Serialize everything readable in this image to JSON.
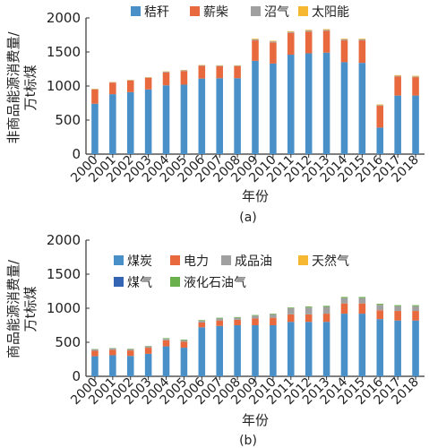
{
  "chart_data": [
    {
      "type": "bar",
      "stacked": true,
      "panel_label": "(a)",
      "xlabel": "年份",
      "ylabel": "非商品能源消费量/万t标煤",
      "ylim": [
        0,
        2000
      ],
      "yticks": [
        0,
        500,
        1000,
        1500,
        2000
      ],
      "grid": false,
      "legend_position": "top",
      "categories": [
        "2000",
        "2001",
        "2002",
        "2003",
        "2004",
        "2005",
        "2006",
        "2007",
        "2008",
        "2009",
        "2010",
        "2011",
        "2012",
        "2013",
        "2014",
        "2015",
        "2016",
        "2017",
        "2018"
      ],
      "series": [
        {
          "name": "秸秆",
          "color": "#4a90c8",
          "values": [
            740,
            880,
            910,
            950,
            1010,
            1020,
            1110,
            1115,
            1115,
            1370,
            1330,
            1460,
            1480,
            1490,
            1350,
            1340,
            390,
            860,
            860
          ]
        },
        {
          "name": "薪柴",
          "color": "#e8693e",
          "values": [
            210,
            170,
            170,
            170,
            190,
            200,
            185,
            175,
            175,
            300,
            310,
            320,
            320,
            320,
            320,
            330,
            320,
            280,
            270
          ]
        },
        {
          "name": "沼气",
          "color": "#a0a0a0",
          "values": [
            5,
            5,
            5,
            5,
            10,
            10,
            10,
            10,
            10,
            15,
            15,
            15,
            15,
            15,
            15,
            15,
            10,
            10,
            10
          ]
        },
        {
          "name": "太阳能",
          "color": "#f6b733",
          "values": [
            5,
            5,
            5,
            5,
            5,
            5,
            5,
            5,
            5,
            10,
            10,
            10,
            10,
            10,
            10,
            10,
            10,
            10,
            10
          ]
        }
      ]
    },
    {
      "type": "bar",
      "stacked": true,
      "panel_label": "(b)",
      "xlabel": "年份",
      "ylabel": "商品能源消费量/万t标煤",
      "ylim": [
        0,
        2000
      ],
      "yticks": [
        0,
        500,
        1000,
        1500,
        2000
      ],
      "grid": false,
      "legend_position": "top",
      "categories": [
        "2000",
        "2001",
        "2002",
        "2003",
        "2004",
        "2005",
        "2006",
        "2007",
        "2008",
        "2009",
        "2010",
        "2011",
        "2012",
        "2013",
        "2014",
        "2015",
        "2016",
        "2017",
        "2018"
      ],
      "series": [
        {
          "name": "煤炭",
          "color": "#4a90c8",
          "values": [
            295,
            310,
            300,
            330,
            440,
            420,
            720,
            740,
            750,
            750,
            750,
            800,
            800,
            800,
            920,
            920,
            840,
            820,
            820
          ]
        },
        {
          "name": "电力",
          "color": "#e8693e",
          "values": [
            80,
            80,
            80,
            90,
            90,
            90,
            70,
            80,
            80,
            100,
            110,
            110,
            110,
            120,
            150,
            150,
            130,
            140,
            140
          ]
        },
        {
          "name": "成品油",
          "color": "#a0a0a0",
          "values": [
            20,
            20,
            20,
            20,
            20,
            20,
            25,
            30,
            30,
            40,
            50,
            90,
            100,
            100,
            80,
            80,
            80,
            70,
            70
          ]
        },
        {
          "name": "天然气",
          "color": "#f6b733",
          "values": [
            0,
            0,
            0,
            0,
            0,
            0,
            0,
            0,
            0,
            0,
            0,
            0,
            0,
            0,
            0,
            0,
            0,
            0,
            0
          ]
        },
        {
          "name": "煤气",
          "color": "#3465b4",
          "values": [
            0,
            0,
            0,
            0,
            0,
            0,
            0,
            0,
            0,
            0,
            0,
            0,
            0,
            0,
            0,
            0,
            0,
            0,
            0
          ]
        },
        {
          "name": "液化石油气",
          "color": "#6ab04c",
          "values": [
            5,
            5,
            5,
            5,
            10,
            10,
            10,
            10,
            10,
            10,
            10,
            10,
            15,
            15,
            15,
            15,
            15,
            15,
            15
          ]
        }
      ]
    }
  ]
}
